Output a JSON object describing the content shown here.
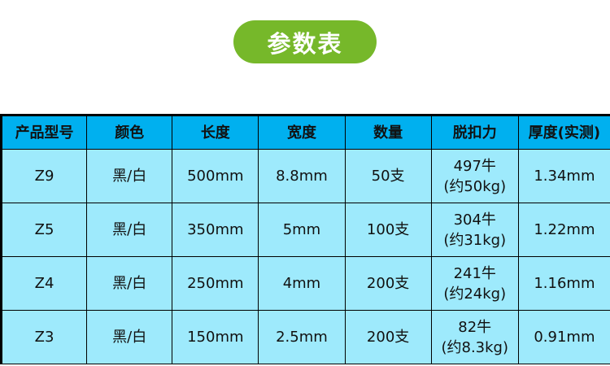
{
  "title": "参数表",
  "colors": {
    "title_bg": "#76b82a",
    "header_bg": "#00b0ef",
    "row_bg": "#9eeafc"
  },
  "table": {
    "headers": [
      "产品型号",
      "颜色",
      "长度",
      "宽度",
      "数量",
      "脱扣力",
      "厚度(实测)"
    ],
    "rows": [
      {
        "model": "Z9",
        "color": "黑/白",
        "length": "500mm",
        "width": "8.8mm",
        "qty": "50支",
        "force_n": "497牛",
        "force_kg": "(约50kg)",
        "thickness": "1.34mm"
      },
      {
        "model": "Z5",
        "color": "黑/白",
        "length": "350mm",
        "width": "5mm",
        "qty": "100支",
        "force_n": "304牛",
        "force_kg": "(约31kg)",
        "thickness": "1.22mm"
      },
      {
        "model": "Z4",
        "color": "黑/白",
        "length": "250mm",
        "width": "4mm",
        "qty": "200支",
        "force_n": "241牛",
        "force_kg": "(约24kg)",
        "thickness": "1.16mm"
      },
      {
        "model": "Z3",
        "color": "黑/白",
        "length": "150mm",
        "width": "2.5mm",
        "qty": "200支",
        "force_n": "82牛",
        "force_kg": "(约8.3kg)",
        "thickness": "0.91mm"
      }
    ]
  }
}
